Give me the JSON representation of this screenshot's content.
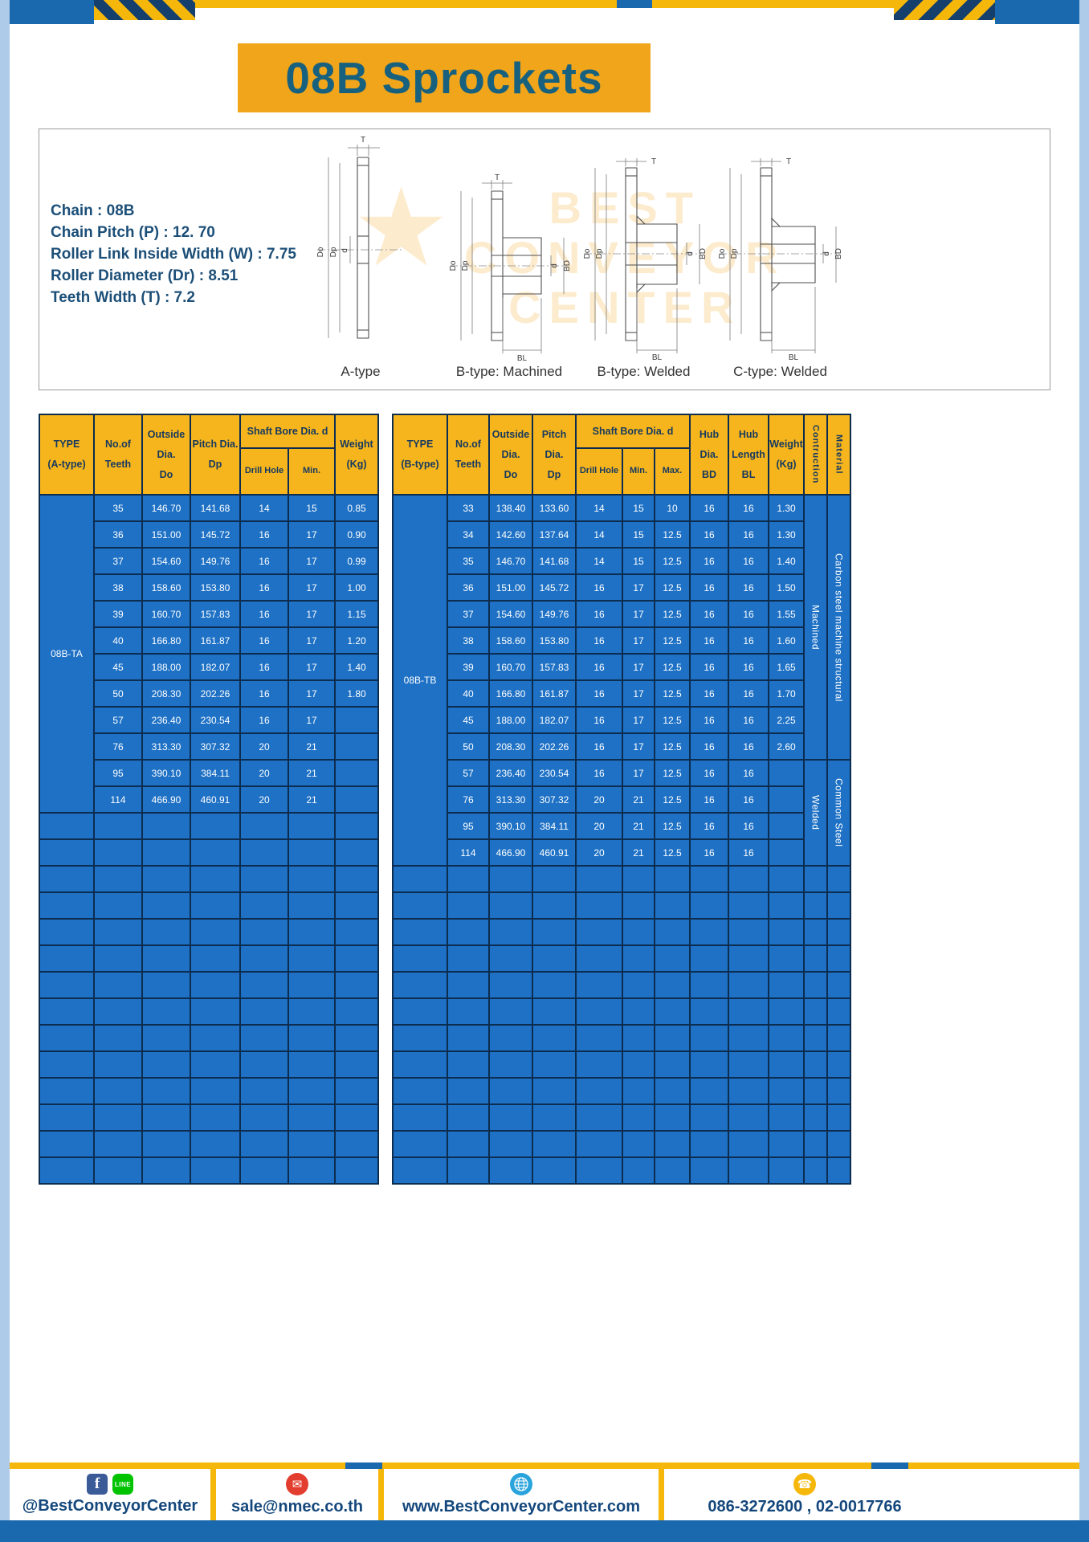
{
  "page": {
    "title": "08B Sprockets"
  },
  "colors": {
    "amber_header": "#f6b51d",
    "banner_amber": "#f0a51a",
    "cell_blue": "#1e71c5",
    "border_navy": "#0c2c50",
    "frame_light_blue": "#aecbe9",
    "bar_blue": "#1a69af",
    "accent_yellow": "#f5b70a"
  },
  "specs": {
    "lines": [
      "Chain : 08B",
      "Chain Pitch (P) : 12. 70",
      "Roller Link Inside Width (W) : 7.75",
      "Roller Diameter (Dr) : 8.51",
      "Teeth Width (T) : 7.2"
    ]
  },
  "diagram": {
    "captions": [
      "A-type",
      "B-type: Machined",
      "B-type: Welded",
      "C-type: Welded"
    ],
    "dims": {
      "t": "T",
      "do": "Do",
      "dp": "Dp",
      "d": "d",
      "bd": "BD",
      "bl": "BL"
    },
    "watermark": {
      "star": "★",
      "lines": [
        "BEST",
        "CONVEYOR",
        "CENTER"
      ]
    }
  },
  "table_a": {
    "headers": {
      "type": "TYPE\n(A-type)",
      "teeth": "No.of\nTeeth",
      "outside": "Outside\nDia.\nDo",
      "pitch": "Pitch Dia.\nDp",
      "shaft_group": "Shaft Bore Dia. d",
      "drill": "Drill Hole",
      "min": "Min.",
      "weight": "Weight\n(Kg)"
    },
    "type_label": "08B-TA",
    "rows": [
      [
        "35",
        "146.70",
        "141.68",
        "14",
        "15",
        "0.85"
      ],
      [
        "36",
        "151.00",
        "145.72",
        "16",
        "17",
        "0.90"
      ],
      [
        "37",
        "154.60",
        "149.76",
        "16",
        "17",
        "0.99"
      ],
      [
        "38",
        "158.60",
        "153.80",
        "16",
        "17",
        "1.00"
      ],
      [
        "39",
        "160.70",
        "157.83",
        "16",
        "17",
        "1.15"
      ],
      [
        "40",
        "166.80",
        "161.87",
        "16",
        "17",
        "1.20"
      ],
      [
        "45",
        "188.00",
        "182.07",
        "16",
        "17",
        "1.40"
      ],
      [
        "50",
        "208.30",
        "202.26",
        "16",
        "17",
        "1.80"
      ],
      [
        "57",
        "236.40",
        "230.54",
        "16",
        "17",
        ""
      ],
      [
        "76",
        "313.30",
        "307.32",
        "20",
        "21",
        ""
      ],
      [
        "95",
        "390.10",
        "384.11",
        "20",
        "21",
        ""
      ],
      [
        "114",
        "466.90",
        "460.91",
        "20",
        "21",
        ""
      ]
    ],
    "empty_rows": 14
  },
  "table_b": {
    "headers": {
      "type": "TYPE\n(B-type)",
      "teeth": "No.of\nTeeth",
      "outside": "Outside\nDia.\nDo",
      "pitch": "Pitch Dia.\nDp",
      "shaft_group": "Shaft Bore Dia. d",
      "drill": "Drill Hole",
      "min": "Min.",
      "max": "Max.",
      "hub_dia": "Hub Dia.\nBD",
      "hub_len": "Hub\nLength\nBL",
      "weight": "Weight\n(Kg)",
      "construction": "Contruction",
      "material": "Material"
    },
    "type_label": "08B-TB",
    "rows": [
      [
        "33",
        "138.40",
        "133.60",
        "14",
        "15",
        "10",
        "16",
        "16",
        "1.30"
      ],
      [
        "34",
        "142.60",
        "137.64",
        "14",
        "15",
        "12.5",
        "16",
        "16",
        "1.30"
      ],
      [
        "35",
        "146.70",
        "141.68",
        "14",
        "15",
        "12.5",
        "16",
        "16",
        "1.40"
      ],
      [
        "36",
        "151.00",
        "145.72",
        "16",
        "17",
        "12.5",
        "16",
        "16",
        "1.50"
      ],
      [
        "37",
        "154.60",
        "149.76",
        "16",
        "17",
        "12.5",
        "16",
        "16",
        "1.55"
      ],
      [
        "38",
        "158.60",
        "153.80",
        "16",
        "17",
        "12.5",
        "16",
        "16",
        "1.60"
      ],
      [
        "39",
        "160.70",
        "157.83",
        "16",
        "17",
        "12.5",
        "16",
        "16",
        "1.65"
      ],
      [
        "40",
        "166.80",
        "161.87",
        "16",
        "17",
        "12.5",
        "16",
        "16",
        "1.70"
      ],
      [
        "45",
        "188.00",
        "182.07",
        "16",
        "17",
        "12.5",
        "16",
        "16",
        "2.25"
      ],
      [
        "50",
        "208.30",
        "202.26",
        "16",
        "17",
        "12.5",
        "16",
        "16",
        "2.60"
      ],
      [
        "57",
        "236.40",
        "230.54",
        "16",
        "17",
        "12.5",
        "16",
        "16",
        ""
      ],
      [
        "76",
        "313.30",
        "307.32",
        "20",
        "21",
        "12.5",
        "16",
        "16",
        ""
      ],
      [
        "95",
        "390.10",
        "384.11",
        "20",
        "21",
        "12.5",
        "16",
        "16",
        ""
      ],
      [
        "114",
        "466.90",
        "460.91",
        "20",
        "21",
        "12.5",
        "16",
        "16",
        ""
      ]
    ],
    "construction_spans": [
      {
        "label": "Machined",
        "rows": 10
      },
      {
        "label": "Welded",
        "rows": 4
      }
    ],
    "material_spans": [
      {
        "label": "Carbon steel  machine structural",
        "rows": 10
      },
      {
        "label": "Common  Steel",
        "rows": 4
      }
    ],
    "empty_rows": 12
  },
  "footer": {
    "fb": "f",
    "line": "LINE",
    "handle": "@BestConveyorCenter",
    "mail_glyph": "✉",
    "email": "sale@nmec.co.th",
    "website": "www.BestConveyorCenter.com",
    "phone_glyph": "☎",
    "phones": "086-3272600 , 02-0017766"
  }
}
